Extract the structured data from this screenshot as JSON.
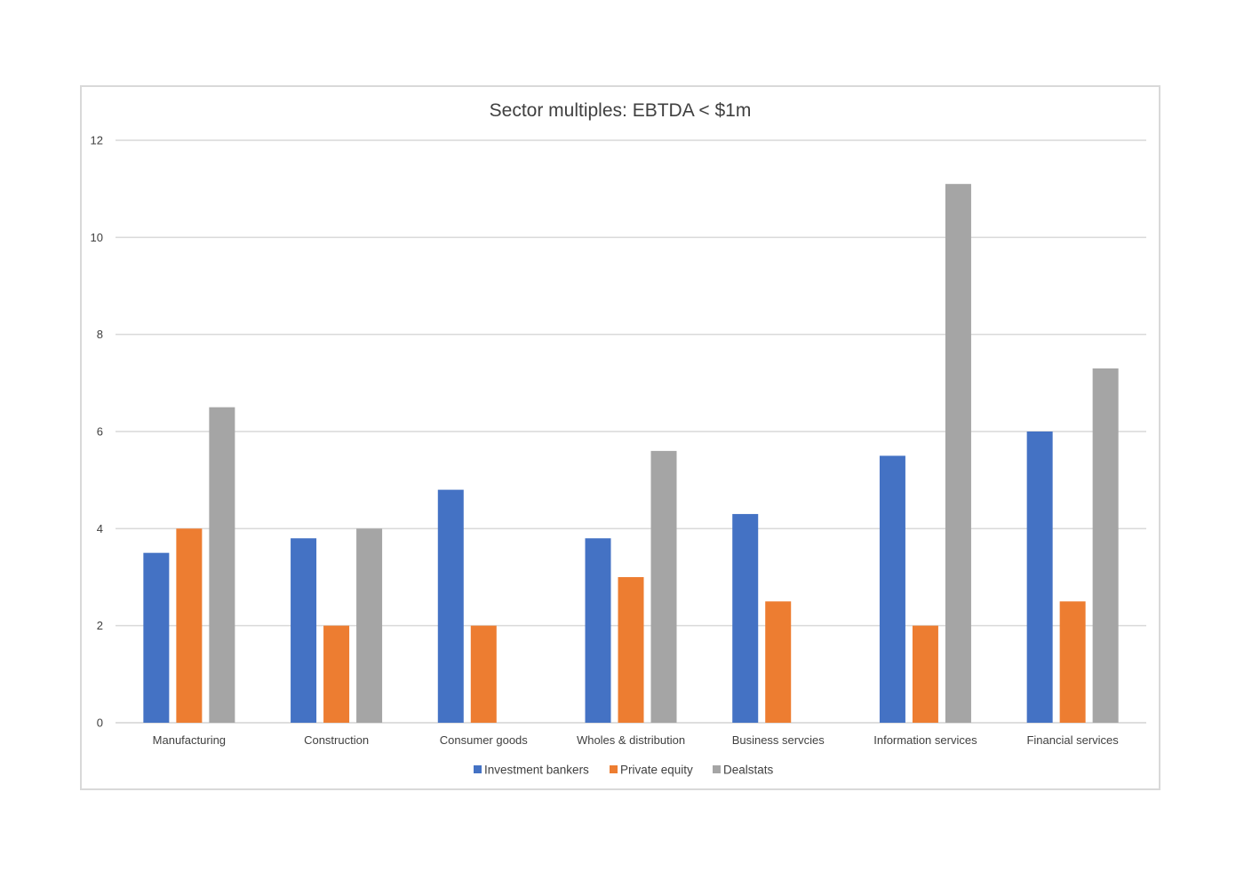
{
  "chart_data": {
    "type": "bar",
    "title": "Sector multiples: EBTDA < $1m",
    "xlabel": "",
    "ylabel": "",
    "ylim": [
      0,
      12
    ],
    "yticks": [
      0,
      2,
      4,
      6,
      8,
      10,
      12
    ],
    "grid": true,
    "legend_position": "bottom",
    "categories": [
      "Manufacturing",
      "Construction",
      "Consumer goods",
      "Wholes & distribution",
      "Business servcies",
      "Information services",
      "Financial services"
    ],
    "series": [
      {
        "name": "Investment bankers",
        "color": "#4472C4",
        "values": [
          3.5,
          3.8,
          4.8,
          3.8,
          4.3,
          5.5,
          6.0
        ]
      },
      {
        "name": "Private equity",
        "color": "#ED7D31",
        "values": [
          4.0,
          2.0,
          2.0,
          3.0,
          2.5,
          2.0,
          2.5
        ]
      },
      {
        "name": "Dealstats",
        "color": "#A5A5A5",
        "values": [
          6.5,
          4.0,
          null,
          5.6,
          null,
          11.1,
          7.3
        ]
      }
    ]
  }
}
